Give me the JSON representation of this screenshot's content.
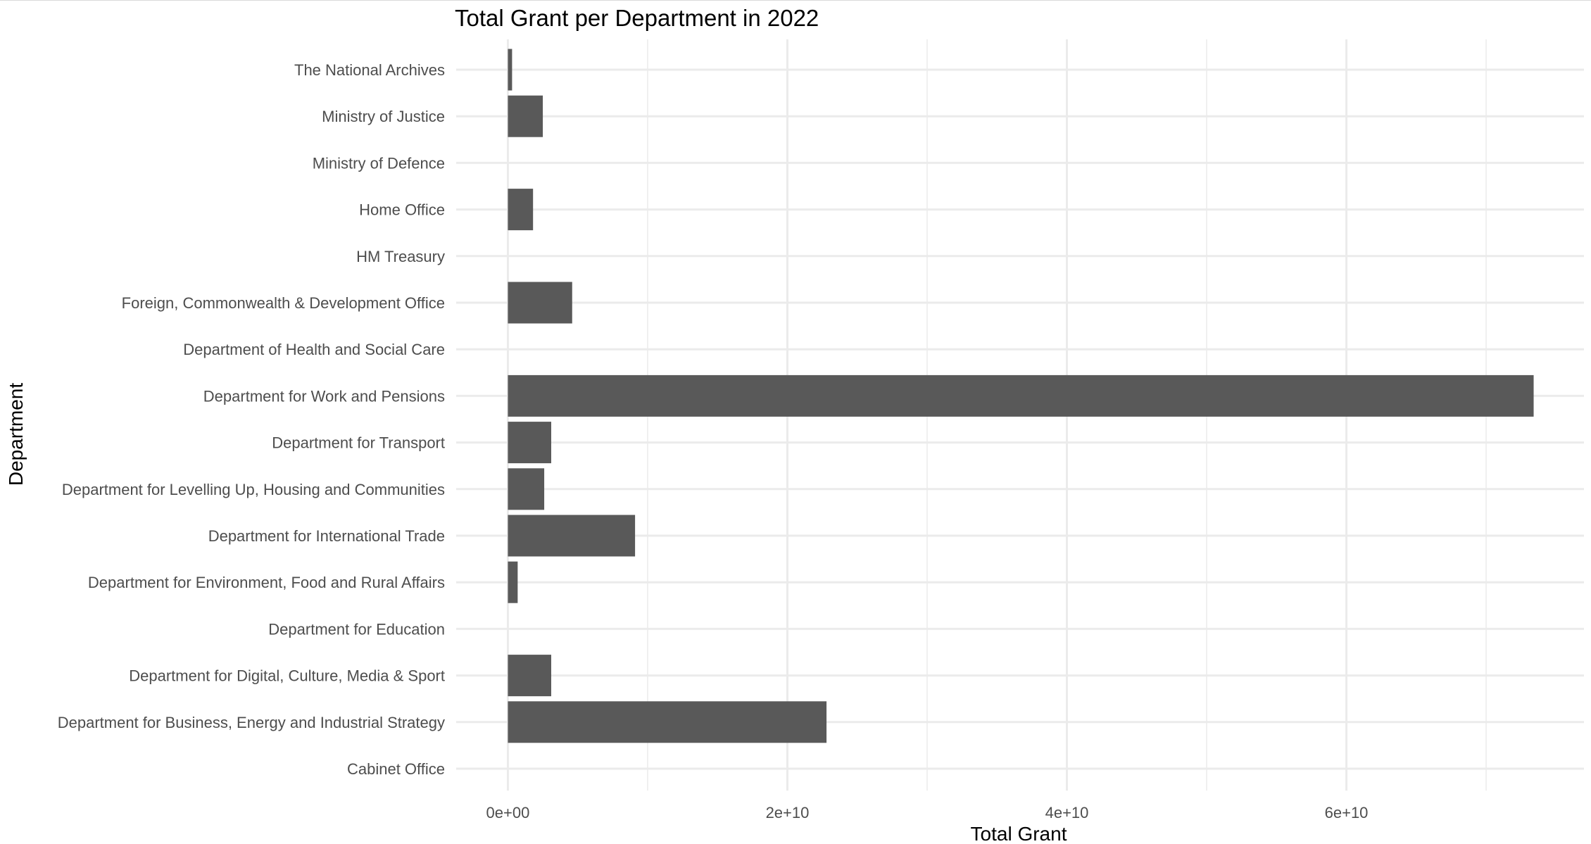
{
  "chart_data": {
    "type": "bar",
    "orientation": "horizontal",
    "title": "Total Grant per Department in 2022",
    "xlabel": "Total Grant",
    "ylabel": "Department",
    "categories": [
      "Cabinet Office",
      "Department for Business, Energy and Industrial Strategy",
      "Department for Digital, Culture, Media & Sport",
      "Department for Education",
      "Department for Environment, Food and Rural Affairs",
      "Department for International Trade",
      "Department for Levelling Up, Housing and Communities",
      "Department for Transport",
      "Department for Work and Pensions",
      "Department of Health and Social Care",
      "Foreign, Commonwealth & Development Office",
      "HM Treasury",
      "Home Office",
      "Ministry of Defence",
      "Ministry of Justice",
      "The National Archives"
    ],
    "values": [
      0,
      22800000000,
      3100000000,
      0,
      700000000,
      9100000000,
      2600000000,
      3100000000,
      73400000000,
      0,
      4600000000,
      0,
      1800000000,
      0,
      2500000000,
      300000000
    ],
    "xlim": [
      -3700000000,
      77000000000
    ],
    "xticks": [
      0,
      20000000000,
      40000000000,
      60000000000
    ],
    "xtick_labels": [
      "0e+00",
      "2e+10",
      "4e+10",
      "6e+10"
    ],
    "grid": true,
    "bar_color": "#595959",
    "grid_color": "#ebebeb"
  }
}
